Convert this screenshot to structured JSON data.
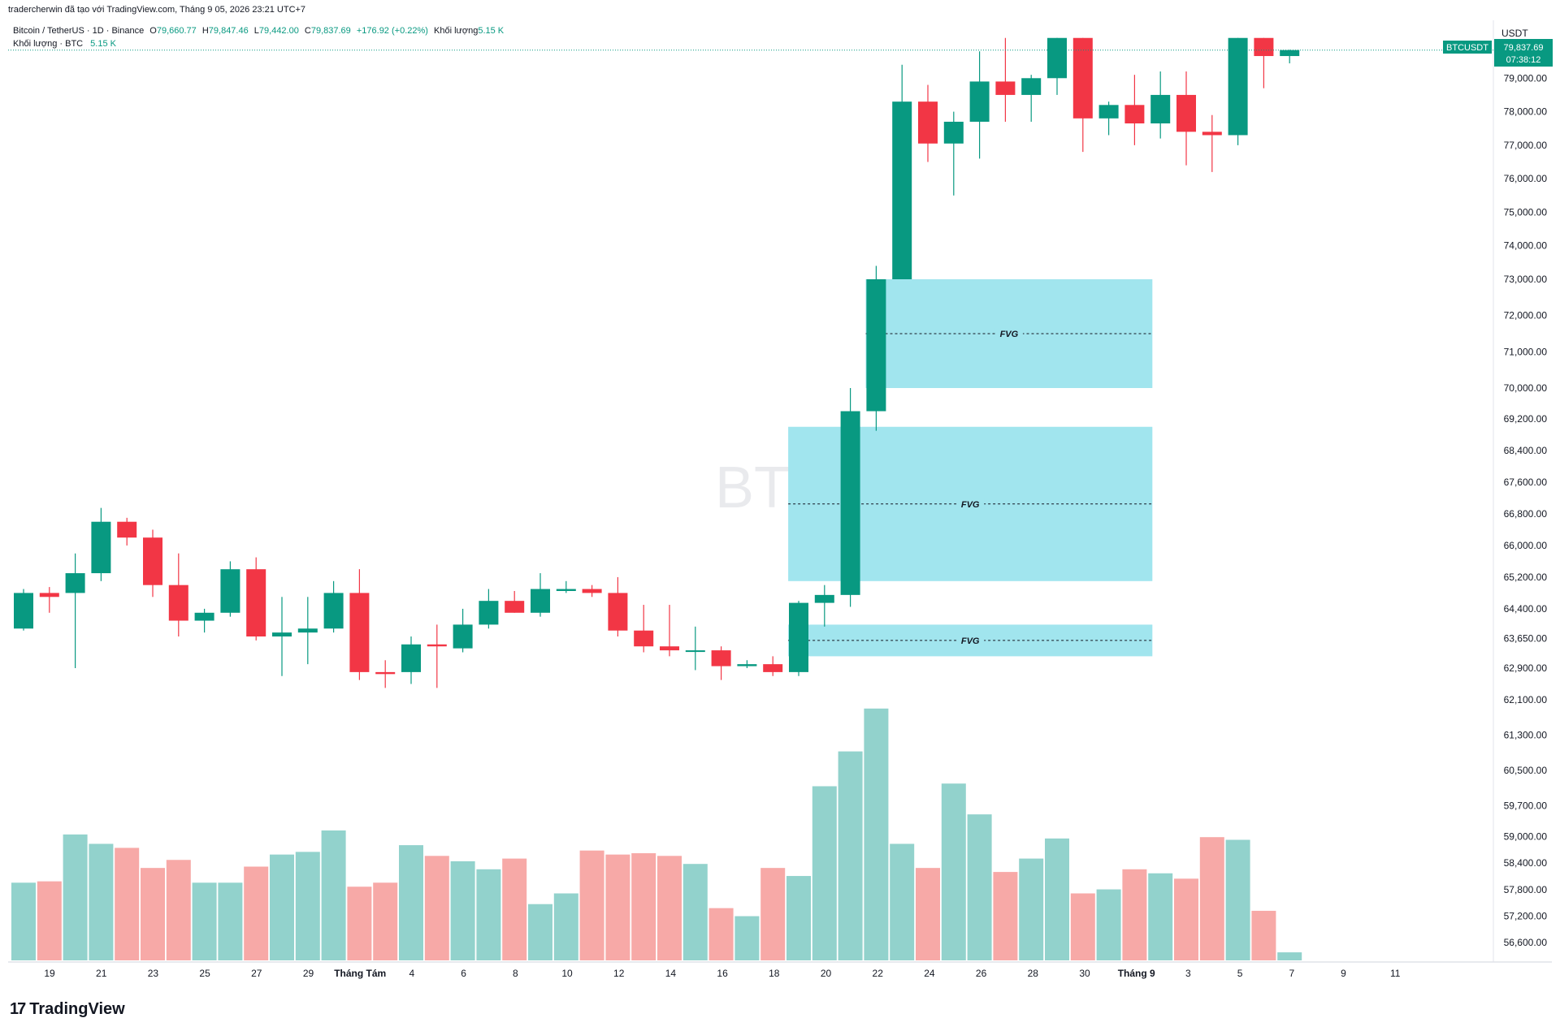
{
  "header": {
    "attribution": "tradercherwin đã tạo với TradingView.com, Tháng 9 05, 2026 23:21 UTC+7"
  },
  "legend": {
    "symbol": "Bitcoin / TetherUS · 1D · Binance",
    "o_label": "O",
    "o_value": "79,660.77",
    "h_label": "H",
    "h_value": "79,847.46",
    "l_label": "L",
    "l_value": "79,442.00",
    "c_label": "C",
    "c_value": "79,837.69",
    "change": "+176.92 (+0.22%)",
    "vol_label": "Khối lượng",
    "vol_value": "5.15 K",
    "vol_line_label": "Khối lượng · BTC",
    "vol_line_value": "5.15 K"
  },
  "price_axis": {
    "currency": "USDT",
    "symbol_tag": "BTCUSDT",
    "last_price_label": "79,837.69",
    "countdown": "07:38:12",
    "ticks": [
      "79,000.00",
      "78,000.00",
      "77,000.00",
      "76,000.00",
      "75,000.00",
      "74,000.00",
      "73,000.00",
      "72,000.00",
      "71,000.00",
      "70,000.00",
      "69,200.00",
      "68,400.00",
      "67,600.00",
      "66,800.00",
      "66,000.00",
      "65,200.00",
      "64,400.00",
      "63,650.00",
      "62,900.00",
      "62,100.00",
      "61,300.00",
      "60,500.00",
      "59,700.00",
      "59,000.00",
      "58,400.00",
      "57,800.00",
      "57,200.00",
      "56,600.00"
    ]
  },
  "watermark": "BTCUSDT",
  "footer": {
    "brand": "TradingView"
  },
  "colors": {
    "up": "#089981",
    "down": "#f23645",
    "vol_up": "#92d2cc",
    "vol_down": "#f7a9a7",
    "fvg": "#a1e5ee"
  },
  "chart_data": {
    "type": "candlestick",
    "x_ticks": [
      {
        "label": "19",
        "bold": false
      },
      {
        "label": "21",
        "bold": false
      },
      {
        "label": "23",
        "bold": false
      },
      {
        "label": "25",
        "bold": false
      },
      {
        "label": "27",
        "bold": false
      },
      {
        "label": "29",
        "bold": false
      },
      {
        "label": "Tháng Tám",
        "bold": true
      },
      {
        "label": "4",
        "bold": false
      },
      {
        "label": "6",
        "bold": false
      },
      {
        "label": "8",
        "bold": false
      },
      {
        "label": "10",
        "bold": false
      },
      {
        "label": "12",
        "bold": false
      },
      {
        "label": "14",
        "bold": false
      },
      {
        "label": "16",
        "bold": false
      },
      {
        "label": "18",
        "bold": false
      },
      {
        "label": "20",
        "bold": false
      },
      {
        "label": "22",
        "bold": false
      },
      {
        "label": "24",
        "bold": false
      },
      {
        "label": "26",
        "bold": false
      },
      {
        "label": "28",
        "bold": false
      },
      {
        "label": "30",
        "bold": false
      },
      {
        "label": "Tháng 9",
        "bold": true
      },
      {
        "label": "3",
        "bold": false
      },
      {
        "label": "5",
        "bold": false
      },
      {
        "label": "7",
        "bold": false
      },
      {
        "label": "9",
        "bold": false
      },
      {
        "label": "11",
        "bold": false
      }
    ],
    "candles": [
      {
        "o": 63900,
        "h": 64900,
        "l": 63850,
        "c": 64800
      },
      {
        "o": 64800,
        "h": 64950,
        "l": 64300,
        "c": 64700
      },
      {
        "o": 64800,
        "h": 65800,
        "l": 62900,
        "c": 65300
      },
      {
        "o": 65300,
        "h": 66950,
        "l": 65100,
        "c": 66600
      },
      {
        "o": 66600,
        "h": 66700,
        "l": 66000,
        "c": 66200
      },
      {
        "o": 66200,
        "h": 66400,
        "l": 64700,
        "c": 65000
      },
      {
        "o": 65000,
        "h": 65800,
        "l": 63700,
        "c": 64100
      },
      {
        "o": 64100,
        "h": 64400,
        "l": 63800,
        "c": 64300
      },
      {
        "o": 64300,
        "h": 65600,
        "l": 64200,
        "c": 65400
      },
      {
        "o": 65400,
        "h": 65700,
        "l": 63600,
        "c": 63700
      },
      {
        "o": 63700,
        "h": 64700,
        "l": 62700,
        "c": 63800
      },
      {
        "o": 63800,
        "h": 64700,
        "l": 63000,
        "c": 63900
      },
      {
        "o": 63900,
        "h": 65100,
        "l": 63800,
        "c": 64800
      },
      {
        "o": 64800,
        "h": 65400,
        "l": 62600,
        "c": 62800
      },
      {
        "o": 62800,
        "h": 63100,
        "l": 62400,
        "c": 62750
      },
      {
        "o": 62800,
        "h": 63700,
        "l": 62500,
        "c": 63500
      },
      {
        "o": 63500,
        "h": 64000,
        "l": 62400,
        "c": 63450
      },
      {
        "o": 63400,
        "h": 64400,
        "l": 63300,
        "c": 64000
      },
      {
        "o": 64000,
        "h": 64900,
        "l": 63900,
        "c": 64600
      },
      {
        "o": 64600,
        "h": 64850,
        "l": 64300,
        "c": 64300
      },
      {
        "o": 64300,
        "h": 65300,
        "l": 64200,
        "c": 64900
      },
      {
        "o": 64850,
        "h": 65100,
        "l": 64800,
        "c": 64900
      },
      {
        "o": 64900,
        "h": 65000,
        "l": 64700,
        "c": 64800
      },
      {
        "o": 64800,
        "h": 65200,
        "l": 63700,
        "c": 63850
      },
      {
        "o": 63850,
        "h": 64500,
        "l": 63300,
        "c": 63450
      },
      {
        "o": 63450,
        "h": 64500,
        "l": 63200,
        "c": 63350
      },
      {
        "o": 63350,
        "h": 63950,
        "l": 62850,
        "c": 63350
      },
      {
        "o": 63350,
        "h": 63450,
        "l": 62600,
        "c": 62950
      },
      {
        "o": 62950,
        "h": 63100,
        "l": 62900,
        "c": 63000
      },
      {
        "o": 63000,
        "h": 63200,
        "l": 62700,
        "c": 62800
      },
      {
        "o": 62800,
        "h": 64600,
        "l": 62700,
        "c": 64550
      },
      {
        "o": 64550,
        "h": 65000,
        "l": 63950,
        "c": 64750
      },
      {
        "o": 64750,
        "h": 70000,
        "l": 64450,
        "c": 69400
      },
      {
        "o": 69400,
        "h": 73400,
        "l": 68900,
        "c": 73000
      },
      {
        "o": 73000,
        "h": 79400,
        "l": 73000,
        "c": 78300
      },
      {
        "o": 78300,
        "h": 78800,
        "l": 76500,
        "c": 77050
      },
      {
        "o": 77050,
        "h": 78000,
        "l": 75500,
        "c": 77700
      },
      {
        "o": 77700,
        "h": 79800,
        "l": 76600,
        "c": 78900
      },
      {
        "o": 78900,
        "h": 80200,
        "l": 77700,
        "c": 78500
      },
      {
        "o": 78500,
        "h": 79100,
        "l": 77700,
        "c": 79000
      },
      {
        "o": 79000,
        "h": 80200,
        "l": 78500,
        "c": 80200
      },
      {
        "o": 80200,
        "h": 80200,
        "l": 76800,
        "c": 77800
      },
      {
        "o": 77800,
        "h": 78300,
        "l": 77300,
        "c": 78200
      },
      {
        "o": 78200,
        "h": 79100,
        "l": 77000,
        "c": 77650
      },
      {
        "o": 77650,
        "h": 79200,
        "l": 77200,
        "c": 78500
      },
      {
        "o": 78500,
        "h": 79200,
        "l": 76400,
        "c": 77400
      },
      {
        "o": 77400,
        "h": 77900,
        "l": 76200,
        "c": 77300
      },
      {
        "o": 77300,
        "h": 80200,
        "l": 77000,
        "c": 80200
      },
      {
        "o": 80200,
        "h": 80200,
        "l": 78700,
        "c": 79660
      },
      {
        "o": 79660,
        "h": 79847,
        "l": 79442,
        "c": 79838
      }
    ],
    "volumes": [
      2.9,
      2.95,
      4.7,
      4.35,
      4.2,
      3.45,
      3.75,
      2.9,
      2.9,
      3.5,
      3.95,
      4.05,
      4.85,
      2.75,
      2.9,
      4.3,
      3.9,
      3.7,
      3.4,
      3.8,
      2.1,
      2.5,
      4.1,
      3.95,
      4.0,
      3.9,
      3.6,
      1.95,
      1.65,
      3.45,
      3.15,
      6.5,
      7.8,
      9.4,
      4.35,
      3.45,
      6.6,
      5.45,
      3.3,
      3.8,
      4.55,
      2.5,
      2.65,
      3.4,
      3.25,
      3.05,
      4.6,
      4.5,
      1.85,
      0.3
    ],
    "fvg_zones": [
      {
        "label": "FVG",
        "top": 73000,
        "bottom": 70000,
        "from": 33,
        "to": 44
      },
      {
        "label": "FVG",
        "top": 69000,
        "bottom": 65100,
        "from": 30,
        "to": 44
      },
      {
        "label": "FVG",
        "top": 64000,
        "bottom": 63200,
        "from": 30,
        "to": 44
      }
    ],
    "last_price": 79838
  }
}
